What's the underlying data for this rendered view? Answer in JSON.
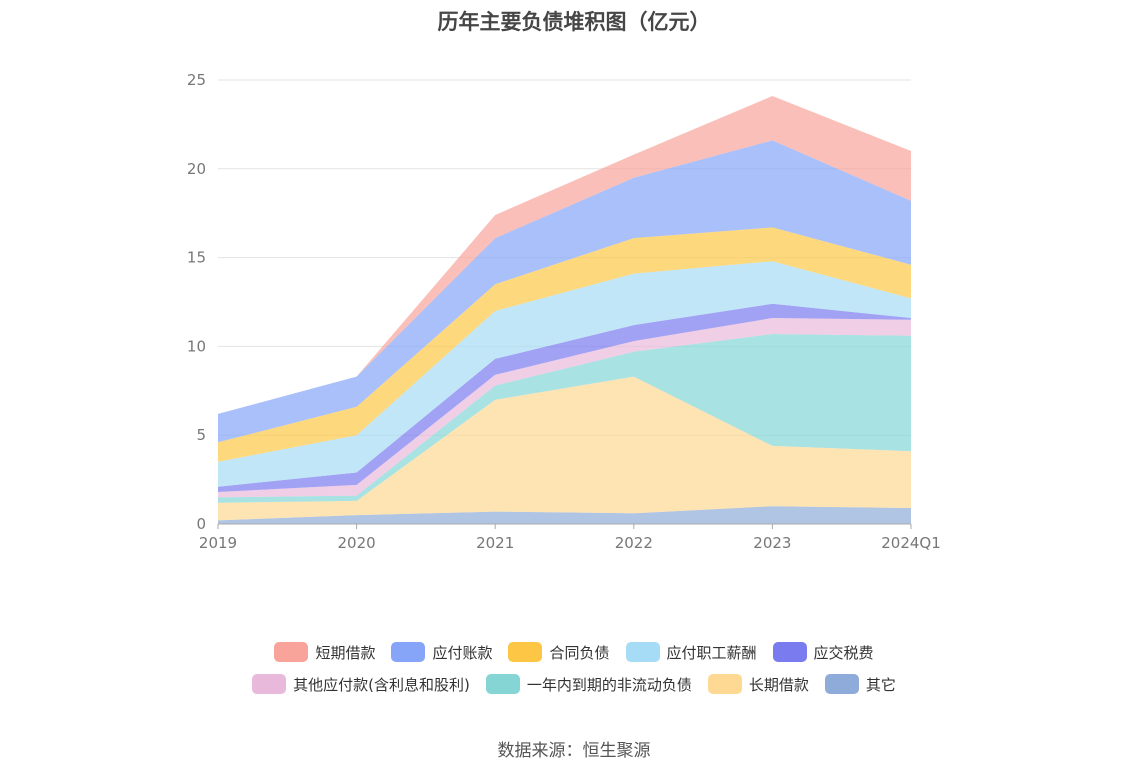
{
  "title": "历年主要负债堆积图（亿元）",
  "source": "数据来源：恒生聚源",
  "chart_data": {
    "type": "area",
    "stacked": true,
    "categories": [
      "2019",
      "2020",
      "2021",
      "2022",
      "2023",
      "2024Q1"
    ],
    "ylim": [
      0,
      25
    ],
    "yticks": [
      0,
      5,
      10,
      15,
      20,
      25
    ],
    "grid": true,
    "legend_position": "bottom",
    "series": [
      {
        "name": "其它",
        "color": "#8fabd9",
        "values": [
          0.2,
          0.5,
          0.7,
          0.6,
          1.0,
          0.9
        ]
      },
      {
        "name": "长期借款",
        "color": "#fdd993",
        "values": [
          1.0,
          0.8,
          6.3,
          7.7,
          3.4,
          3.2
        ]
      },
      {
        "name": "一年内到期的非流动负债",
        "color": "#85d5d5",
        "values": [
          0.3,
          0.3,
          0.8,
          1.4,
          6.3,
          6.5
        ]
      },
      {
        "name": "其他应付款(含利息和股利)",
        "color": "#e9b9dc",
        "values": [
          0.3,
          0.6,
          0.6,
          0.6,
          0.9,
          0.9
        ]
      },
      {
        "name": "应交税费",
        "color": "#7b7bf0",
        "values": [
          0.3,
          0.7,
          0.9,
          0.9,
          0.8,
          0.1
        ]
      },
      {
        "name": "应付职工薪酬",
        "color": "#a6dcf5",
        "values": [
          1.4,
          2.1,
          2.7,
          2.9,
          2.4,
          1.1
        ]
      },
      {
        "name": "合同负债",
        "color": "#fdc745",
        "values": [
          1.1,
          1.6,
          1.5,
          2.0,
          1.9,
          1.9
        ]
      },
      {
        "name": "应付账款",
        "color": "#86a5f8",
        "values": [
          1.6,
          1.7,
          2.6,
          3.4,
          4.9,
          3.6
        ]
      },
      {
        "name": "短期借款",
        "color": "#f9a49b",
        "values": [
          0.0,
          0.0,
          1.3,
          1.3,
          2.5,
          2.8
        ]
      }
    ]
  },
  "legend": {
    "row1": [
      "短期借款",
      "应付账款",
      "合同负债",
      "应付职工薪酬",
      "应交税费"
    ],
    "row2": [
      "其他应付款(含利息和股利)",
      "一年内到期的非流动负债",
      "长期借款",
      "其它"
    ]
  }
}
